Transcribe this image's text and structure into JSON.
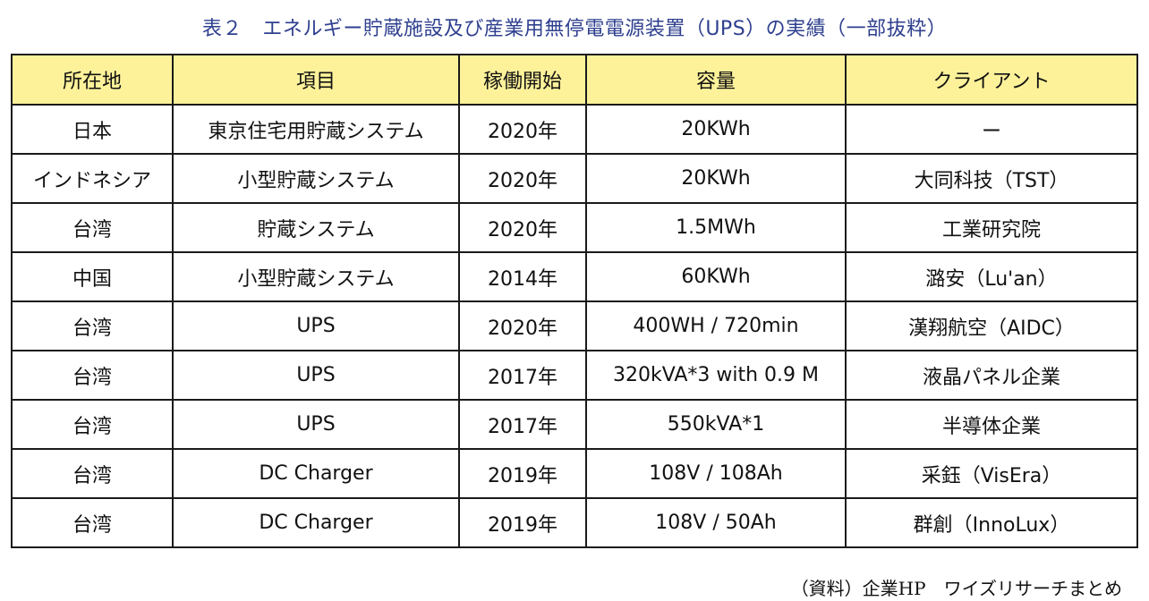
{
  "title": "表２　エネルギー貯蔵施設及び産業用無停電電源装置（UPS）の実績（一部抜粋）",
  "table": {
    "headers": [
      "所在地",
      "項目",
      "稼働開始",
      "容量",
      "クライアント"
    ],
    "rows": [
      [
        "日本",
        "東京住宅用貯蔵システム",
        "2020年",
        "20KWh",
        "ー"
      ],
      [
        "インドネシア",
        "小型貯蔵システム",
        "2020年",
        "20KWh",
        "大同科技（TST）"
      ],
      [
        "台湾",
        "貯蔵システム",
        "2020年",
        "1.5MWh",
        "工業研究院"
      ],
      [
        "中国",
        "小型貯蔵システム",
        "2014年",
        "60KWh",
        "潞安（Lu'an）"
      ],
      [
        "台湾",
        "UPS",
        "2020年",
        "400WH / 720min",
        "漢翔航空（AIDC）"
      ],
      [
        "台湾",
        "UPS",
        "2017年",
        "320kVA*3 with 0.9 M",
        "液晶パネル企業"
      ],
      [
        "台湾",
        "UPS",
        "2017年",
        "550kVA*1",
        "半導体企業"
      ],
      [
        "台湾",
        "DC Charger",
        "2019年",
        "108V / 108Ah",
        "采鈺（VisEra）"
      ],
      [
        "台湾",
        "DC Charger",
        "2019年",
        "108V / 50Ah",
        "群創（InnoLux）"
      ]
    ]
  },
  "source": "（資料）企業HP　ワイズリサーチまとめ",
  "colors": {
    "title": "#2e3f8f",
    "header_bg": "#fdf29a",
    "border": "#1a1a1a"
  }
}
